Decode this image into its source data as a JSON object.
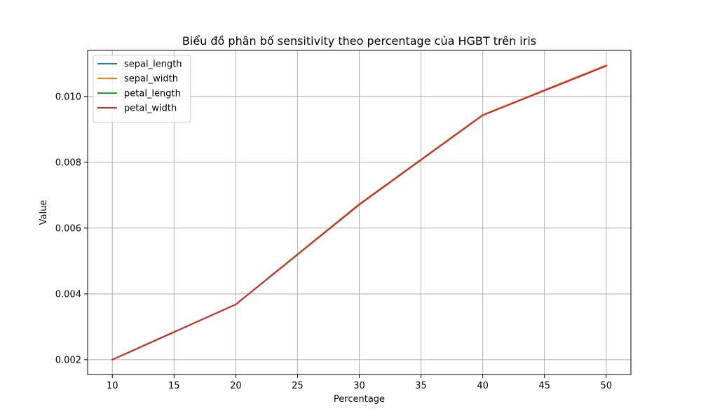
{
  "chart_data": {
    "type": "line",
    "title": "Biểu đồ phân bố sensitivity theo percentage của HGBT trên iris",
    "xlabel": "Percentage",
    "ylabel": "Value",
    "x": [
      10,
      20,
      30,
      40,
      50
    ],
    "xlim": [
      8,
      52
    ],
    "ylim": [
      0.00155,
      0.0114
    ],
    "xticks": [
      10,
      15,
      20,
      25,
      30,
      35,
      40,
      45,
      50
    ],
    "xtick_labels": [
      "10",
      "15",
      "20",
      "25",
      "30",
      "35",
      "40",
      "45",
      "50"
    ],
    "yticks": [
      0.002,
      0.004,
      0.006,
      0.008,
      0.01
    ],
    "ytick_labels": [
      "0.002",
      "0.004",
      "0.006",
      "0.008",
      "0.010"
    ],
    "grid": true,
    "legend_position": "top-left",
    "series": [
      {
        "name": "sepal_length",
        "color": "#1f77b4",
        "values": [
          0.002,
          0.00368,
          0.00672,
          0.00943,
          0.01093
        ]
      },
      {
        "name": "sepal_width",
        "color": "#ff7f0e",
        "values": [
          0.002,
          0.00368,
          0.00673,
          0.00944,
          0.01095
        ]
      },
      {
        "name": "petal_length",
        "color": "#2ca02c",
        "values": [
          0.002,
          0.00368,
          0.00672,
          0.00943,
          0.01093
        ]
      },
      {
        "name": "petal_width",
        "color": "#d62728",
        "values": [
          0.002,
          0.00368,
          0.00671,
          0.00943,
          0.01093
        ]
      }
    ]
  }
}
